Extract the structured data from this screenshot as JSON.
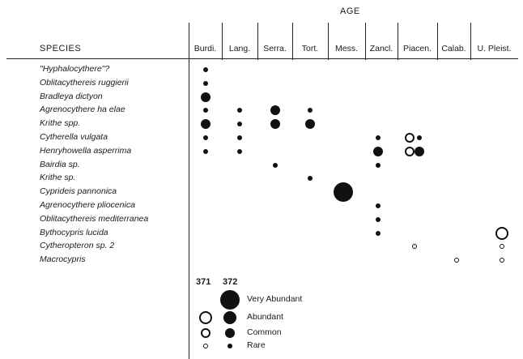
{
  "age_label": "AGE",
  "species_header": "SPECIES",
  "stages": [
    "Burdi.",
    "Lang.",
    "Serra.",
    "Tort.",
    "Mess.",
    "Zancl.",
    "Piacen.",
    "Calab.",
    "U. Pleist."
  ],
  "species": [
    "\"Hyphalocythere\"?",
    "Oblitacythereis ruggierii",
    "Bradleya dictyon",
    "Agrenocythere ha elae",
    "Krithe spp.",
    "Cytherella vulgata",
    "Henryhowella asperrima",
    "Bairdia sp.",
    "Krithe sp.",
    "Cyprideis pannonica",
    "Agrenocythere pliocenica",
    "Oblitacythereis mediterranea",
    "Bythocypris lucida",
    "Cytheropteron sp. 2",
    "Macrocypris"
  ],
  "occurrences": [
    {
      "species": 0,
      "stage": 0,
      "site": "372",
      "abundance": "rare"
    },
    {
      "species": 1,
      "stage": 0,
      "site": "372",
      "abundance": "rare"
    },
    {
      "species": 2,
      "stage": 0,
      "site": "372",
      "abundance": "common"
    },
    {
      "species": 3,
      "stage": 0,
      "site": "372",
      "abundance": "rare"
    },
    {
      "species": 3,
      "stage": 1,
      "site": "372",
      "abundance": "rare"
    },
    {
      "species": 3,
      "stage": 2,
      "site": "372",
      "abundance": "common"
    },
    {
      "species": 3,
      "stage": 3,
      "site": "372",
      "abundance": "rare"
    },
    {
      "species": 4,
      "stage": 0,
      "site": "372",
      "abundance": "common"
    },
    {
      "species": 4,
      "stage": 1,
      "site": "372",
      "abundance": "rare"
    },
    {
      "species": 4,
      "stage": 2,
      "site": "372",
      "abundance": "common"
    },
    {
      "species": 4,
      "stage": 3,
      "site": "372",
      "abundance": "common"
    },
    {
      "species": 5,
      "stage": 0,
      "site": "372",
      "abundance": "rare"
    },
    {
      "species": 5,
      "stage": 1,
      "site": "372",
      "abundance": "rare"
    },
    {
      "species": 5,
      "stage": 5,
      "site": "372",
      "abundance": "rare"
    },
    {
      "species": 5,
      "stage": 6,
      "site": "371",
      "abundance": "common"
    },
    {
      "species": 5,
      "stage": 6,
      "site": "372",
      "abundance": "rare"
    },
    {
      "species": 6,
      "stage": 0,
      "site": "372",
      "abundance": "rare"
    },
    {
      "species": 6,
      "stage": 1,
      "site": "372",
      "abundance": "rare"
    },
    {
      "species": 6,
      "stage": 5,
      "site": "372",
      "abundance": "common"
    },
    {
      "species": 6,
      "stage": 6,
      "site": "371",
      "abundance": "common"
    },
    {
      "species": 6,
      "stage": 6,
      "site": "372",
      "abundance": "common"
    },
    {
      "species": 7,
      "stage": 2,
      "site": "372",
      "abundance": "rare"
    },
    {
      "species": 7,
      "stage": 5,
      "site": "372",
      "abundance": "rare"
    },
    {
      "species": 8,
      "stage": 3,
      "site": "372",
      "abundance": "rare"
    },
    {
      "species": 9,
      "stage": 4,
      "site": "372",
      "abundance": "very_abundant"
    },
    {
      "species": 10,
      "stage": 5,
      "site": "372",
      "abundance": "rare"
    },
    {
      "species": 11,
      "stage": 5,
      "site": "372",
      "abundance": "rare"
    },
    {
      "species": 12,
      "stage": 5,
      "site": "372",
      "abundance": "rare"
    },
    {
      "species": 12,
      "stage": 8,
      "site": "371",
      "abundance": "abundant"
    },
    {
      "species": 13,
      "stage": 6,
      "site": "371",
      "abundance": "rare"
    },
    {
      "species": 13,
      "stage": 8,
      "site": "371",
      "abundance": "rare"
    },
    {
      "species": 14,
      "stage": 7,
      "site": "371",
      "abundance": "rare"
    },
    {
      "species": 14,
      "stage": 8,
      "site": "371",
      "abundance": "rare"
    }
  ],
  "legend": {
    "site_371": "371",
    "site_372": "372",
    "levels": [
      {
        "key": "very_abundant",
        "label": "Very Abundant",
        "sites": [
          "372"
        ]
      },
      {
        "key": "abundant",
        "label": "Abundant",
        "sites": [
          "371",
          "372"
        ]
      },
      {
        "key": "common",
        "label": "Common",
        "sites": [
          "371",
          "372"
        ]
      },
      {
        "key": "rare",
        "label": "Rare",
        "sites": [
          "371",
          "372"
        ]
      }
    ]
  }
}
